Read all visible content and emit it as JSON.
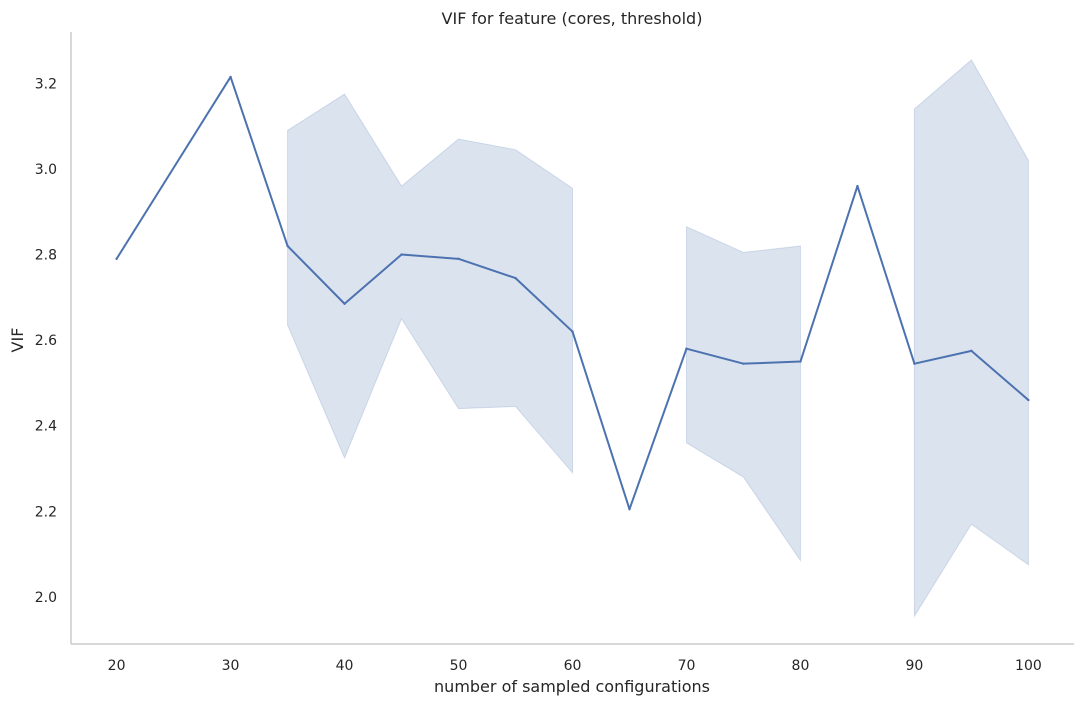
{
  "chart_data": {
    "type": "line",
    "title": "VIF for feature (cores, threshold)",
    "xlabel": "number of sampled configurations",
    "ylabel": "VIF",
    "xlim": [
      16,
      104
    ],
    "ylim": [
      1.89,
      3.32
    ],
    "xticks": [
      20,
      30,
      40,
      50,
      60,
      70,
      80,
      90,
      100
    ],
    "yticks": [
      2.0,
      2.2,
      2.4,
      2.6,
      2.8,
      3.0,
      3.2
    ],
    "grid": false,
    "colors": {
      "line": "#4c72b0",
      "band": "#4c72b0",
      "axis": "#cccccc",
      "text": "#262626"
    },
    "series": [
      {
        "x": [
          20,
          30,
          35,
          40,
          45,
          50,
          55,
          60,
          65,
          70,
          75,
          80,
          85,
          90,
          95,
          100
        ],
        "values": [
          2.79,
          3.215,
          2.82,
          2.685,
          2.8,
          2.79,
          2.745,
          2.62,
          2.205,
          2.58,
          2.545,
          2.55,
          2.96,
          2.545,
          2.575,
          2.46
        ],
        "ci_upper": [
          2.79,
          3.215,
          3.09,
          3.175,
          2.96,
          3.07,
          3.045,
          2.955,
          2.205,
          2.865,
          2.805,
          2.82,
          2.96,
          3.14,
          3.255,
          3.02
        ],
        "ci_lower": [
          2.79,
          3.215,
          2.635,
          2.325,
          2.65,
          2.44,
          2.445,
          2.29,
          2.205,
          2.36,
          2.28,
          2.085,
          2.96,
          1.955,
          2.17,
          2.075
        ],
        "band_segments": [
          [
            2,
            7
          ],
          [
            9,
            11
          ],
          [
            13,
            15
          ]
        ]
      }
    ]
  }
}
